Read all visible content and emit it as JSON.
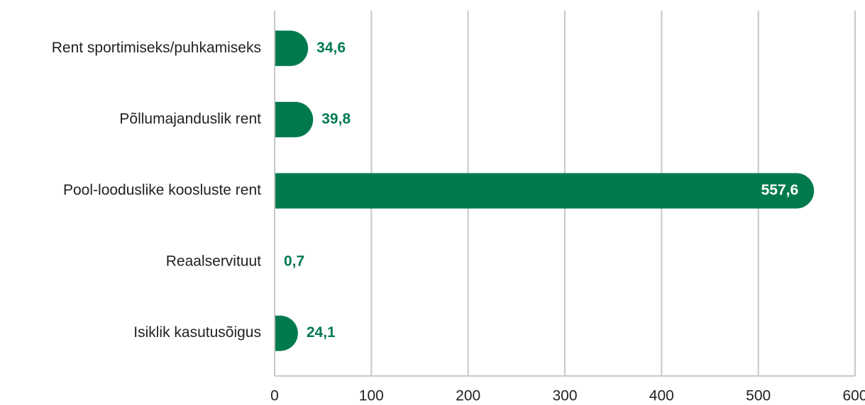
{
  "chart_data": {
    "type": "bar",
    "orientation": "horizontal",
    "categories": [
      "Rent sportimiseks/puhkamiseks",
      "Põllumajanduslik rent",
      "Pool-looduslike koosluste rent",
      "Reaalservituut",
      "Isiklik kasutusõigus"
    ],
    "values": [
      34.6,
      39.8,
      557.6,
      0.7,
      24.1
    ],
    "value_labels": [
      "34,6",
      "39,8",
      "557,6",
      "0,7",
      "24,1"
    ],
    "color": "#007a4d",
    "xlim": [
      0,
      600
    ],
    "xticks": [
      0,
      100,
      200,
      300,
      400,
      500,
      600
    ],
    "grid": true
  }
}
